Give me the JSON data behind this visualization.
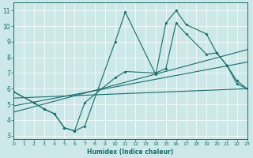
{
  "xlabel": "Humidex (Indice chaleur)",
  "xlim": [
    0,
    23
  ],
  "ylim": [
    2.8,
    11.5
  ],
  "xticks": [
    0,
    1,
    2,
    3,
    4,
    5,
    6,
    7,
    8,
    9,
    10,
    11,
    12,
    13,
    14,
    15,
    16,
    17,
    18,
    19,
    20,
    21,
    22,
    23
  ],
  "yticks": [
    3,
    4,
    5,
    6,
    7,
    8,
    9,
    10,
    11
  ],
  "bg_color": "#cce8e8",
  "line_color": "#1a6b6b",
  "line1_x": [
    0,
    2,
    3,
    4,
    5,
    6,
    7,
    10,
    11,
    14,
    15,
    16,
    17,
    19,
    20,
    21,
    22,
    23
  ],
  "line1_y": [
    5.8,
    5.1,
    4.7,
    4.4,
    3.5,
    3.3,
    3.6,
    9.0,
    10.9,
    6.9,
    10.2,
    11.0,
    10.1,
    9.5,
    8.3,
    7.5,
    6.3,
    6.0
  ],
  "line2_x": [
    0,
    2,
    3,
    4,
    5,
    6,
    7,
    10,
    11,
    14,
    15,
    16,
    17,
    19,
    20,
    21,
    22,
    23
  ],
  "line2_y": [
    5.8,
    5.1,
    4.7,
    4.4,
    3.5,
    3.3,
    5.1,
    6.7,
    7.1,
    7.0,
    7.3,
    10.2,
    9.5,
    8.2,
    8.3,
    7.5,
    6.5,
    6.0
  ],
  "trend1_x": [
    0,
    23
  ],
  "trend1_y": [
    5.4,
    6.0
  ],
  "trend2_x": [
    0,
    23
  ],
  "trend2_y": [
    4.9,
    7.7
  ],
  "trend3_x": [
    0,
    23
  ],
  "trend3_y": [
    4.5,
    8.5
  ]
}
